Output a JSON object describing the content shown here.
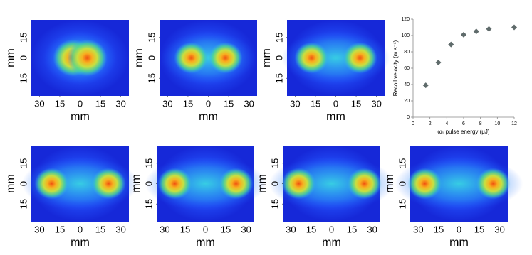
{
  "chart_data": [
    {
      "type": "image",
      "xlabel": "mm",
      "ylabel": "mm",
      "xlim": [
        -36,
        36
      ],
      "ylim": [
        -28,
        28
      ],
      "xticks": [
        {
          "value": -30,
          "label": "30"
        },
        {
          "value": -15,
          "label": "15"
        },
        0,
        15,
        30
      ],
      "yticks": [
        {
          "value": 15,
          "label": "15"
        },
        0,
        {
          "value": -15,
          "label": "15"
        }
      ]
    },
    {
      "type": "image",
      "xlabel": "mm",
      "ylabel": "mm",
      "xlim": [
        -36,
        36
      ],
      "ylim": [
        -28,
        28
      ],
      "xticks": [
        {
          "value": -30,
          "label": "30"
        },
        {
          "value": -15,
          "label": "15"
        },
        0,
        15,
        30
      ],
      "yticks": [
        {
          "value": 15,
          "label": "15"
        },
        0,
        {
          "value": -15,
          "label": "15"
        }
      ]
    },
    {
      "type": "image",
      "xlabel": "mm",
      "ylabel": "mm",
      "xlim": [
        -36,
        36
      ],
      "ylim": [
        -28,
        28
      ],
      "xticks": [
        {
          "value": -30,
          "label": "30"
        },
        {
          "value": -15,
          "label": "15"
        },
        0,
        15,
        30
      ],
      "yticks": [
        {
          "value": 15,
          "label": "15"
        },
        0,
        {
          "value": -15,
          "label": "15"
        }
      ]
    },
    {
      "type": "scatter",
      "xlabel": "ω₁ pulse energy (μJ)",
      "ylabel": "Recoil velocity (m s⁻¹)",
      "x": [
        1.5,
        3,
        4.5,
        6,
        7.5,
        9,
        12
      ],
      "values": [
        39,
        67,
        89,
        101,
        105,
        108,
        110
      ],
      "color": "#5f6b6b",
      "xlim": [
        0,
        12
      ],
      "xticks": [
        0,
        2,
        4,
        6,
        8,
        10,
        12
      ],
      "ylim": [
        0,
        120
      ],
      "yticks": [
        0,
        20,
        40,
        60,
        80,
        100,
        120
      ]
    },
    {
      "type": "image",
      "xlabel": "mm",
      "ylabel": "mm",
      "xlim": [
        -36,
        36
      ],
      "ylim": [
        -28,
        28
      ],
      "xticks": [
        {
          "value": -30,
          "label": "30"
        },
        {
          "value": -15,
          "label": "15"
        },
        0,
        15,
        30
      ],
      "yticks": [
        {
          "value": 15,
          "label": "15"
        },
        0,
        {
          "value": -15,
          "label": "15"
        }
      ]
    },
    {
      "type": "image",
      "xlabel": "mm",
      "ylabel": "mm",
      "xlim": [
        -36,
        36
      ],
      "ylim": [
        -28,
        28
      ],
      "xticks": [
        {
          "value": -30,
          "label": "30"
        },
        {
          "value": -15,
          "label": "15"
        },
        0,
        15,
        30
      ],
      "yticks": [
        {
          "value": 15,
          "label": "15"
        },
        0,
        {
          "value": -15,
          "label": "15"
        }
      ]
    },
    {
      "type": "image",
      "xlabel": "mm",
      "ylabel": "mm",
      "xlim": [
        -36,
        36
      ],
      "ylim": [
        -28,
        28
      ],
      "xticks": [
        {
          "value": -30,
          "label": "30"
        },
        {
          "value": -15,
          "label": "15"
        },
        0,
        15,
        30
      ],
      "yticks": [
        {
          "value": 15,
          "label": "15"
        },
        0,
        {
          "value": -15,
          "label": "15"
        }
      ]
    },
    {
      "type": "image",
      "xlabel": "mm",
      "ylabel": "mm",
      "xlim": [
        -36,
        36
      ],
      "ylim": [
        -28,
        28
      ],
      "xticks": [
        {
          "value": -30,
          "label": "30"
        },
        {
          "value": -15,
          "label": "15"
        },
        0,
        15,
        30
      ],
      "yticks": [
        {
          "value": 15,
          "label": "15"
        },
        0,
        {
          "value": -15,
          "label": "15"
        }
      ]
    }
  ]
}
